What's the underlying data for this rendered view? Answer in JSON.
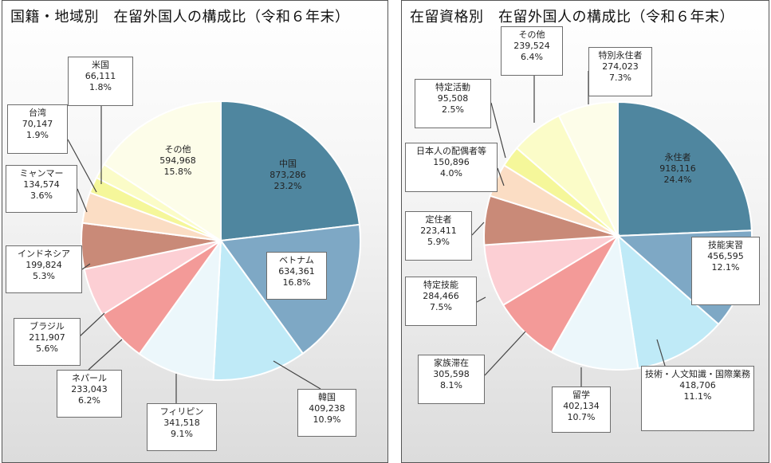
{
  "chart_data": [
    {
      "type": "pie",
      "title": "国籍・地域別　在留外国人の構成比（令和６年末）",
      "slices": [
        {
          "label": "中国",
          "value_text": "873,286",
          "pct_text": "23.2%",
          "value": 873286,
          "pct": 23.2,
          "color": "#4f869f"
        },
        {
          "label": "ベトナム",
          "value_text": "634,361",
          "pct_text": "16.8%",
          "value": 634361,
          "pct": 16.8,
          "color": "#7ea8c5"
        },
        {
          "label": "韓国",
          "value_text": "409,238",
          "pct_text": "10.9%",
          "value": 409238,
          "pct": 10.9,
          "color": "#bfeaf7"
        },
        {
          "label": "フィリピン",
          "value_text": "341,518",
          "pct_text": "9.1%",
          "value": 341518,
          "pct": 9.1,
          "color": "#ecf7fb"
        },
        {
          "label": "ネパール",
          "value_text": "233,043",
          "pct_text": "6.2%",
          "value": 233043,
          "pct": 6.2,
          "color": "#f39a98"
        },
        {
          "label": "ブラジル",
          "value_text": "211,907",
          "pct_text": "5.6%",
          "value": 211907,
          "pct": 5.6,
          "color": "#fccfd4"
        },
        {
          "label": "インドネシア",
          "value_text": "199,824",
          "pct_text": "5.3%",
          "value": 199824,
          "pct": 5.3,
          "color": "#c98a78"
        },
        {
          "label": "ミャンマー",
          "value_text": "134,574",
          "pct_text": "3.6%",
          "value": 134574,
          "pct": 3.6,
          "color": "#fbddc4"
        },
        {
          "label": "台湾",
          "value_text": "70,147",
          "pct_text": "1.9%",
          "value": 70147,
          "pct": 1.9,
          "color": "#f5f79a"
        },
        {
          "label": "米国",
          "value_text": "66,111",
          "pct_text": "1.8%",
          "value": 66111,
          "pct": 1.8,
          "color": "#fbfcc8"
        },
        {
          "label": "その他",
          "value_text": "594,968",
          "pct_text": "15.8%",
          "value": 594968,
          "pct": 15.8,
          "color": "#fdfde9"
        }
      ]
    },
    {
      "type": "pie",
      "title": "在留資格別　在留外国人の構成比（令和６年末）",
      "slices": [
        {
          "label": "永住者",
          "value_text": "918,116",
          "pct_text": "24.4%",
          "value": 918116,
          "pct": 24.4,
          "color": "#4f869f"
        },
        {
          "label": "技能実習",
          "value_text": "456,595",
          "pct_text": "12.1%",
          "value": 456595,
          "pct": 12.1,
          "color": "#7ea8c5"
        },
        {
          "label": "技術・人文知識・国際業務",
          "value_text": "418,706",
          "pct_text": "11.1%",
          "value": 418706,
          "pct": 11.1,
          "color": "#bfeaf7"
        },
        {
          "label": "留学",
          "value_text": "402,134",
          "pct_text": "10.7%",
          "value": 402134,
          "pct": 10.7,
          "color": "#ecf7fb"
        },
        {
          "label": "家族滞在",
          "value_text": "305,598",
          "pct_text": "8.1%",
          "value": 305598,
          "pct": 8.1,
          "color": "#f39a98"
        },
        {
          "label": "特定技能",
          "value_text": "284,466",
          "pct_text": "7.5%",
          "value": 284466,
          "pct": 7.5,
          "color": "#fccfd4"
        },
        {
          "label": "定住者",
          "value_text": "223,411",
          "pct_text": "5.9%",
          "value": 223411,
          "pct": 5.9,
          "color": "#c98a78"
        },
        {
          "label": "日本人の配偶者等",
          "value_text": "150,896",
          "pct_text": "4.0%",
          "value": 150896,
          "pct": 4.0,
          "color": "#fbddc4"
        },
        {
          "label": "特定活動",
          "value_text": "95,508",
          "pct_text": "2.5%",
          "value": 95508,
          "pct": 2.5,
          "color": "#f5f79a"
        },
        {
          "label": "その他",
          "value_text": "239,524",
          "pct_text": "6.4%",
          "value": 239524,
          "pct": 6.4,
          "color": "#fbfcc8"
        },
        {
          "label": "特別永住者",
          "value_text": "274,023",
          "pct_text": "7.3%",
          "value": 274023,
          "pct": 7.3,
          "color": "#fdfde9"
        }
      ]
    }
  ]
}
